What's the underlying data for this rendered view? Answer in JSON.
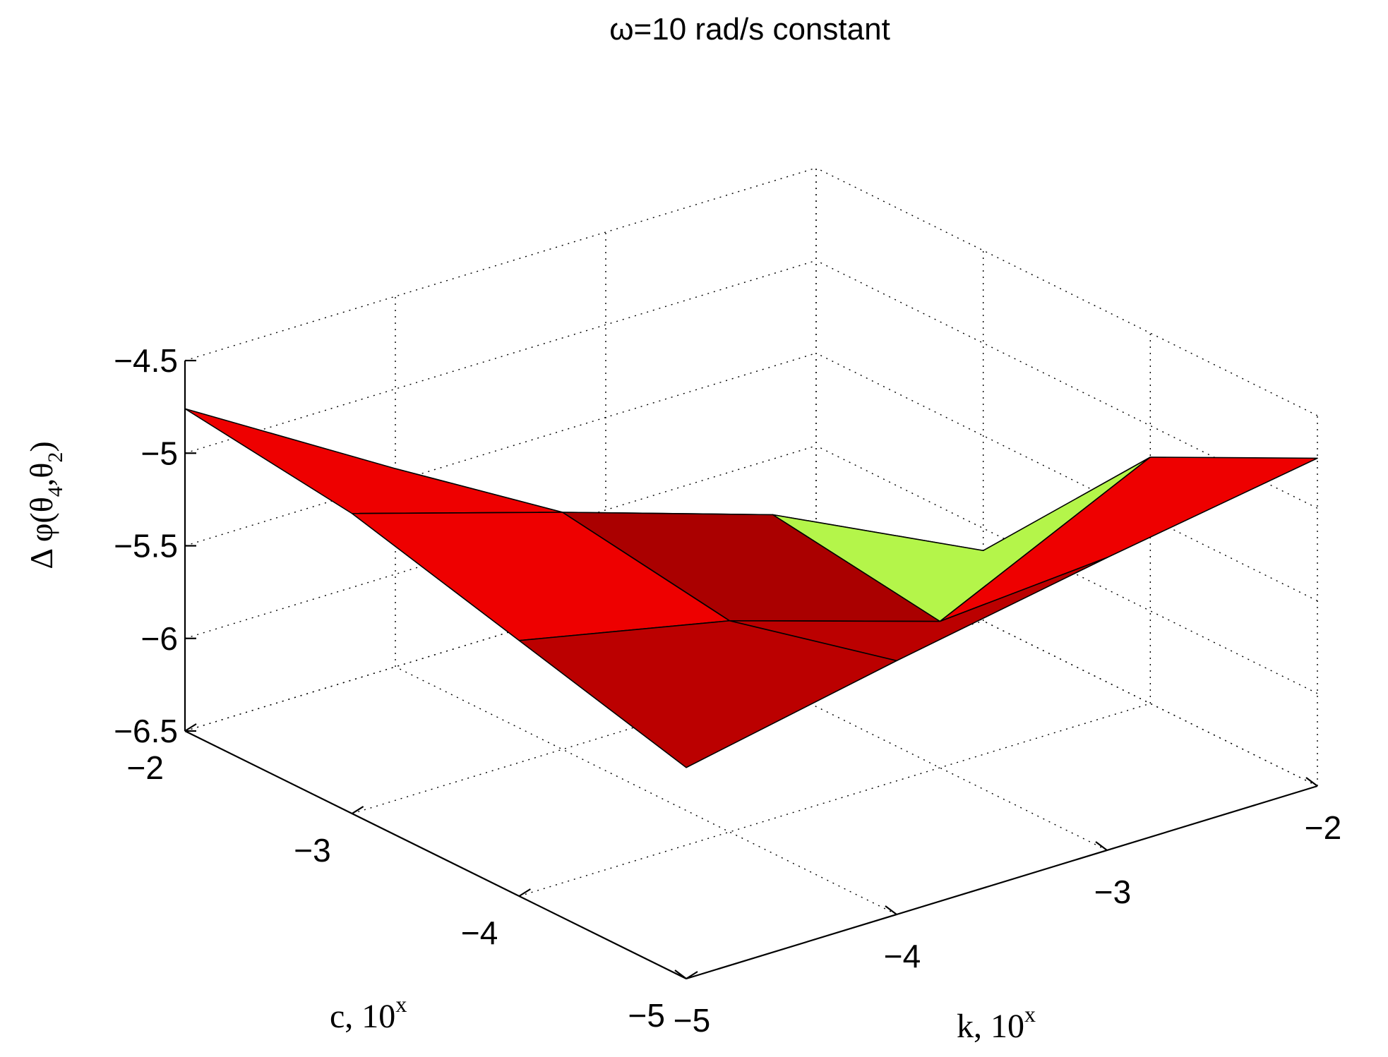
{
  "chart_data": {
    "type": "surface",
    "title": "ω=10 rad/s constant",
    "xlabel": {
      "main": "k, 10",
      "sup": "x"
    },
    "ylabel": {
      "main": "c, 10",
      "sup": "x"
    },
    "zlabel": {
      "pre": "Δ φ(θ",
      "sub1": "4",
      "mid": ",θ",
      "sub2": "2",
      "post": ")"
    },
    "x_ticks": [
      -5,
      -4,
      -3,
      -2
    ],
    "x_tick_labels": [
      "−5",
      "−4",
      "−3",
      "−2"
    ],
    "y_ticks": [
      -5,
      -4,
      -3,
      -2
    ],
    "y_tick_labels": [
      "−5",
      "−4",
      "−3",
      "−2"
    ],
    "z_ticks": [
      -6.5,
      -6,
      -5.5,
      -5,
      -4.5
    ],
    "z_tick_labels": [
      "−6.5",
      "−6",
      "−5.5",
      "−5",
      "−4.5"
    ],
    "xlim": [
      -5,
      -2
    ],
    "ylim": [
      -5,
      -2
    ],
    "zlim": [
      -6.5,
      -4.5
    ],
    "grid": true,
    "colormap": "jet",
    "x": [
      -5,
      -4,
      -3,
      -2
    ],
    "y": [
      -5,
      -4,
      -3,
      -2
    ],
    "z": [
      [
        -5.36,
        -5.12,
        -4.88,
        -4.76
      ],
      [
        -5.13,
        -5.36,
        -5.22,
        -5.43
      ],
      [
        -4.92,
        -5.71,
        -5.58,
        -6.46
      ],
      [
        -4.73,
        -5.17,
        -6.12,
        -6.51
      ]
    ],
    "face_colors": {
      "high": "#ecec2a",
      "upper": "#b4f54a",
      "mid_high": "#60ff98",
      "low": "#0000a8",
      "red1": "#aa0000",
      "red2": "#bb0000",
      "red3": "#ee0000"
    }
  }
}
